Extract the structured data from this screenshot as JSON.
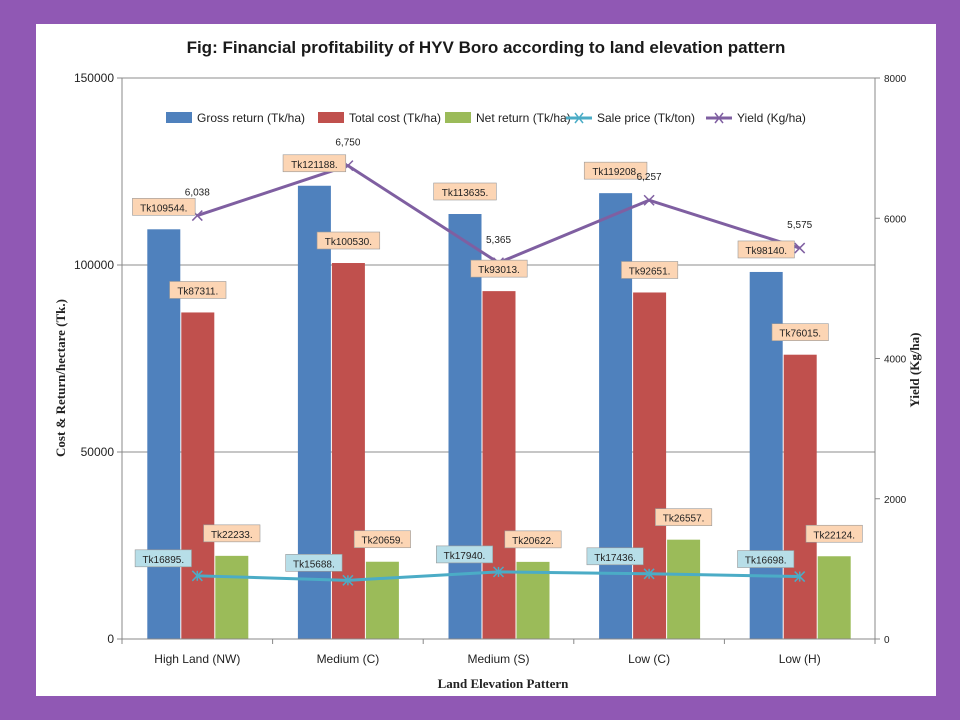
{
  "chart_data": {
    "type": "bar",
    "title": "Fig: Financial profitability of HYV Boro according to land elevation pattern",
    "xlabel": "Land Elevation Pattern",
    "ylabel": "Cost & Return/hectare (Tk.)",
    "y2label": "Yield (Kg/ha)",
    "ylim": [
      0,
      150000
    ],
    "y2lim": [
      0,
      8000
    ],
    "yticks": [
      "0",
      "50000",
      "100000",
      "150000"
    ],
    "y2ticks": [
      "0",
      "2000",
      "4000",
      "6000",
      "8000"
    ],
    "grid": true,
    "legend_position": "top",
    "categories": [
      "High Land (NW)",
      "Medium (C)",
      "Medium (S)",
      "Low (C)",
      "Low (H)"
    ],
    "series": [
      {
        "name": "Gross return (Tk/ha)",
        "kind": "bar",
        "axis": "left",
        "color": "#4f81bd",
        "values": [
          109544,
          121188,
          113635,
          119208,
          98140
        ],
        "labels": [
          "Tk109544.",
          "Tk121188.",
          "Tk113635.",
          "Tk119208.",
          "Tk98140."
        ]
      },
      {
        "name": "Total cost (Tk/ha)",
        "kind": "bar",
        "axis": "left",
        "color": "#c0504d",
        "values": [
          87311,
          100530,
          93013,
          92651,
          76015
        ],
        "labels": [
          "Tk87311.",
          "Tk100530.",
          "Tk93013.",
          "Tk92651.",
          "Tk76015."
        ]
      },
      {
        "name": "Net return (Tk/ha)",
        "kind": "bar",
        "axis": "left",
        "color": "#9bbb59",
        "values": [
          22233,
          20659,
          20622,
          26557,
          22124
        ],
        "labels": [
          "Tk22233.",
          "Tk20659.",
          "Tk20622.",
          "Tk26557.",
          "Tk22124."
        ]
      },
      {
        "name": "Sale price (Tk/ton)",
        "kind": "line",
        "axis": "left",
        "color": "#4bacc6",
        "values": [
          16895,
          15688,
          17940,
          17436,
          16698
        ],
        "labels": [
          "Tk16895.",
          "Tk15688.",
          "Tk17940.",
          "Tk17436.",
          "Tk16698."
        ]
      },
      {
        "name": "Yield (Kg/ha)",
        "kind": "line",
        "axis": "right",
        "color": "#7f5fa1",
        "values": [
          6038,
          6750,
          5365,
          6257,
          5575
        ],
        "labels": [
          "6,038",
          "6,750",
          "5,365",
          "6,257",
          "5,575"
        ]
      }
    ]
  },
  "colors": {
    "frame": "#9058b4",
    "label_bg_return": "#fcd5b4",
    "label_bg_price": "#b7dee8"
  }
}
